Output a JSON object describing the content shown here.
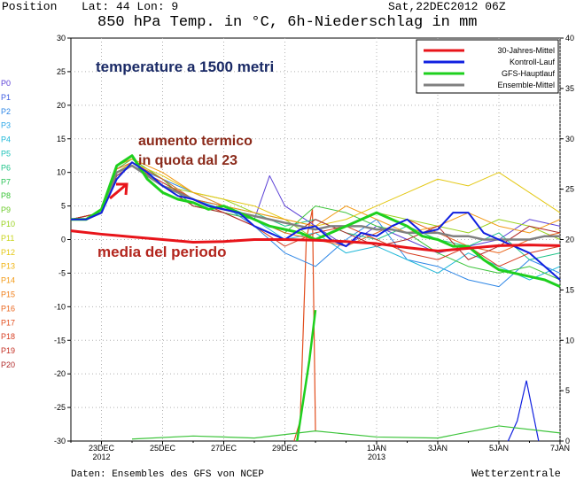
{
  "header": {
    "position_label": "Position",
    "coords_label": "Lat: 44 Lon: 9",
    "datetime": "Sat,22DEC2012 06Z",
    "title": "850 hPa Temp. in °C, 6h-Niederschlag in mm"
  },
  "footer": {
    "source": "Daten: Ensembles des GFS von NCEP",
    "brand": "Wetterzentrale"
  },
  "members": [
    {
      "label": "P0",
      "color": "#5a3fd6"
    },
    {
      "label": "P1",
      "color": "#3d5be0"
    },
    {
      "label": "P2",
      "color": "#2d86e6"
    },
    {
      "label": "P3",
      "color": "#2aa6e8"
    },
    {
      "label": "P4",
      "color": "#20b8d8"
    },
    {
      "label": "P5",
      "color": "#1fc2b8"
    },
    {
      "label": "P6",
      "color": "#22c48a"
    },
    {
      "label": "P7",
      "color": "#2ec35a"
    },
    {
      "label": "P8",
      "color": "#3cc43a"
    },
    {
      "label": "P9",
      "color": "#6ccb2a"
    },
    {
      "label": "P10",
      "color": "#9ad21f"
    },
    {
      "label": "P11",
      "color": "#c8d41a"
    },
    {
      "label": "P12",
      "color": "#e4c814"
    },
    {
      "label": "P13",
      "color": "#f0b414"
    },
    {
      "label": "P14",
      "color": "#f39a16"
    },
    {
      "label": "P15",
      "color": "#f07e18"
    },
    {
      "label": "P16",
      "color": "#ea651c"
    },
    {
      "label": "P17",
      "color": "#e24e1e"
    },
    {
      "label": "P18",
      "color": "#d63c20"
    },
    {
      "label": "P19",
      "color": "#c43024"
    },
    {
      "label": "P20",
      "color": "#b02828"
    }
  ],
  "annotations": {
    "upper_air": "temperature a 1500 metri",
    "warming_line1": "aumento termico",
    "warming_line2": "in quota dal 23",
    "period_mean": "media del periodo"
  },
  "colors": {
    "mean30": "#e8141a",
    "control": "#1020e0",
    "gfs": "#1ed01e",
    "ensemble": "#808080"
  },
  "chart_data": {
    "type": "line",
    "title": "850 hPa Temp. in °C, 6h-Niederschlag in mm",
    "x_range": [
      "2012-12-22",
      "2013-01-07"
    ],
    "x_ticks": [
      {
        "label": "23DEC",
        "sub": "2012",
        "day": 1
      },
      {
        "label": "25DEC",
        "sub": "",
        "day": 3
      },
      {
        "label": "27DEC",
        "sub": "",
        "day": 5
      },
      {
        "label": "29DEC",
        "sub": "",
        "day": 7
      },
      {
        "label": "1JAN",
        "sub": "2013",
        "day": 10
      },
      {
        "label": "3JAN",
        "sub": "",
        "day": 12
      },
      {
        "label": "5JAN",
        "sub": "",
        "day": 14
      },
      {
        "label": "7JAN",
        "sub": "",
        "day": 16
      }
    ],
    "y_left": {
      "min": -30,
      "max": 30,
      "ticks": [
        -30,
        -25,
        -20,
        -15,
        -10,
        -5,
        0,
        5,
        10,
        15,
        20,
        25,
        30
      ]
    },
    "y_right": {
      "min": 0,
      "max": 40,
      "ticks": [
        0,
        5,
        10,
        15,
        20,
        25,
        30,
        35,
        40
      ]
    },
    "grid": true,
    "legend_position": "top-right",
    "legend": [
      {
        "name": "30-Jahres-Mittel",
        "color": "#e8141a"
      },
      {
        "name": "Kontroll-Lauf",
        "color": "#1020e0"
      },
      {
        "name": "GFS-Hauptlauf",
        "color": "#1ed01e"
      },
      {
        "name": "Ensemble-Mittel",
        "color": "#808080"
      }
    ],
    "series": [
      {
        "name": "30-Jahres-Mittel",
        "color": "#e8141a",
        "width": 3,
        "x": [
          0,
          1,
          2,
          3,
          4,
          5,
          6,
          7,
          8,
          9,
          10,
          11,
          12,
          13,
          14,
          15,
          16
        ],
        "y": [
          1.3,
          0.8,
          0.4,
          0.0,
          -0.4,
          -0.3,
          0.0,
          0.0,
          -0.1,
          -0.3,
          -0.6,
          -1.2,
          -1.7,
          -1.3,
          -0.9,
          -0.8,
          -0.9
        ]
      },
      {
        "name": "Kontroll-Lauf",
        "color": "#1020e0",
        "width": 2,
        "x": [
          0,
          0.5,
          1,
          1.5,
          2,
          2.5,
          3,
          3.5,
          4,
          4.5,
          5,
          5.5,
          6,
          6.5,
          7,
          7.5,
          8,
          8.5,
          9,
          9.5,
          10,
          10.5,
          11,
          11.5,
          12,
          12.5,
          13,
          13.5,
          14,
          14.5,
          15,
          15.5,
          16
        ],
        "y": [
          3,
          3,
          4,
          9,
          11.5,
          10,
          8,
          6.5,
          6,
          5,
          4.5,
          4,
          2,
          1,
          0,
          1.5,
          2,
          0,
          -1,
          1,
          0.5,
          2,
          3,
          1,
          1.5,
          4,
          4,
          1,
          0,
          -1,
          -2,
          -4,
          -6
        ]
      },
      {
        "name": "GFS-Hauptlauf",
        "color": "#1ed01e",
        "width": 3,
        "x": [
          0,
          0.5,
          1,
          1.5,
          2,
          2.5,
          3,
          3.5,
          4,
          4.5,
          5,
          5.5,
          6,
          6.5,
          7,
          7.5,
          8,
          8.5,
          9,
          9.5,
          10,
          10.5,
          11,
          11.5,
          12,
          12.5,
          13,
          13.5,
          14,
          14.5,
          15,
          15.5,
          16
        ],
        "y": [
          3,
          3,
          4.5,
          11,
          12.5,
          9,
          7,
          6,
          5.5,
          4.5,
          5,
          4,
          3,
          2,
          1.5,
          1,
          0,
          1,
          2,
          3,
          4,
          3,
          2,
          0.5,
          0,
          -1,
          -1,
          -3,
          -4.5,
          -5,
          -5.5,
          -6,
          -7
        ]
      },
      {
        "name": "Ensemble-Mittel",
        "color": "#808080",
        "width": 2.5,
        "x": [
          0,
          0.5,
          1,
          1.5,
          2,
          2.5,
          3,
          3.5,
          4,
          4.5,
          5,
          5.5,
          6,
          6.5,
          7,
          7.5,
          8,
          8.5,
          9,
          9.5,
          10,
          10.5,
          11,
          11.5,
          12,
          12.5,
          13,
          13.5,
          14,
          14.5,
          15,
          15.5,
          16
        ],
        "y": [
          3,
          3,
          4,
          10,
          11,
          9.5,
          8,
          7,
          6,
          5,
          4.5,
          4,
          3.5,
          3,
          2.5,
          2,
          1.5,
          2,
          2,
          2,
          1.5,
          1.5,
          1,
          1,
          1,
          0.5,
          0.5,
          0,
          0,
          0,
          0,
          0.5,
          0.5
        ]
      },
      {
        "name": "P0",
        "color": "#5a3fd6",
        "width": 1,
        "x": [
          0,
          1,
          1.5,
          2,
          3,
          4,
          5,
          6,
          6.5,
          7,
          8,
          9,
          10,
          11,
          12,
          13,
          14,
          15,
          16
        ],
        "y": [
          3,
          4,
          10,
          11,
          8.5,
          6,
          4,
          3,
          9.5,
          5,
          2,
          -1,
          2,
          0,
          -2,
          -1,
          0,
          3,
          2
        ]
      },
      {
        "name": "P2",
        "color": "#2d86e6",
        "width": 1,
        "x": [
          0,
          1,
          1.5,
          2,
          3,
          4,
          5,
          6,
          7,
          8,
          9,
          10,
          11,
          12,
          13,
          14,
          15,
          16
        ],
        "y": [
          3,
          4,
          9.5,
          11,
          9,
          7,
          5,
          2,
          -2,
          -4,
          0,
          3,
          -3,
          -4,
          -6,
          -7,
          -3,
          -5
        ]
      },
      {
        "name": "P4",
        "color": "#20b8d8",
        "width": 1,
        "x": [
          0,
          1,
          1.5,
          2,
          3,
          4,
          5,
          6,
          7,
          8,
          9,
          10,
          11,
          12,
          13,
          14,
          15,
          16
        ],
        "y": [
          3,
          4,
          10,
          11.5,
          9,
          6,
          4.5,
          3,
          0,
          1,
          -2,
          -1,
          -3,
          -5,
          -2,
          -4,
          -6,
          -4
        ]
      },
      {
        "name": "P6",
        "color": "#22c48a",
        "width": 1,
        "x": [
          0,
          1,
          1.5,
          2,
          3,
          4,
          5,
          6,
          7,
          8,
          9,
          10,
          11,
          12,
          13,
          14,
          15,
          16
        ],
        "y": [
          3,
          4,
          11,
          12,
          8,
          6,
          5,
          4,
          2,
          3,
          1,
          0,
          2,
          0,
          -1,
          1,
          -3,
          -2
        ]
      },
      {
        "name": "P8",
        "color": "#3cc43a",
        "width": 1,
        "x": [
          0,
          1,
          1.5,
          2,
          3,
          4,
          5,
          6,
          7,
          8,
          9,
          10,
          11,
          12,
          13,
          14,
          15,
          16
        ],
        "y": [
          3,
          4,
          10.5,
          12,
          9,
          5,
          4,
          3,
          1,
          5,
          4,
          2,
          1,
          -2,
          -4,
          -5,
          -4,
          -6
        ]
      },
      {
        "name": "P10",
        "color": "#9ad21f",
        "width": 1,
        "x": [
          0,
          1,
          1.5,
          2,
          3,
          4,
          5,
          6,
          7,
          8,
          9,
          10,
          11,
          12,
          13,
          14,
          15,
          16
        ],
        "y": [
          3,
          4,
          10,
          11,
          8,
          7,
          6,
          4,
          3,
          0,
          2,
          4,
          3,
          2,
          1,
          3,
          2,
          0
        ]
      },
      {
        "name": "P12",
        "color": "#e4c814",
        "width": 1,
        "x": [
          0,
          1,
          1.5,
          2,
          3,
          4,
          5,
          6,
          7,
          8,
          9,
          10,
          11,
          12,
          13,
          14,
          15,
          16
        ],
        "y": [
          3,
          4,
          10,
          11.5,
          9.5,
          7,
          6,
          5,
          3,
          2,
          3,
          5,
          7,
          9,
          8,
          10,
          7,
          4
        ]
      },
      {
        "name": "P14",
        "color": "#f39a16",
        "width": 1,
        "x": [
          0,
          1,
          1.5,
          2,
          3,
          4,
          5,
          6,
          7,
          8,
          9,
          10,
          11,
          12,
          13,
          14,
          15,
          16
        ],
        "y": [
          3,
          4,
          11,
          12,
          10,
          7,
          5,
          4,
          3,
          2,
          5,
          3,
          1,
          2,
          4,
          2,
          1,
          3
        ]
      },
      {
        "name": "P16",
        "color": "#ea651c",
        "width": 1,
        "x": [
          0,
          1,
          1.5,
          2,
          3,
          4,
          5,
          6,
          7,
          8,
          9,
          10,
          11,
          12,
          13,
          14,
          15,
          16
        ],
        "y": [
          3,
          4,
          10.5,
          11.5,
          9,
          6,
          5,
          3,
          1,
          0,
          -1,
          1,
          3,
          1,
          -1,
          -2,
          0,
          1
        ]
      },
      {
        "name": "P18",
        "color": "#d63c20",
        "width": 1,
        "x": [
          0,
          1,
          1.5,
          2,
          3,
          4,
          5,
          6,
          7,
          8,
          9,
          10,
          11,
          12,
          13,
          14,
          15,
          16
        ],
        "y": [
          3,
          4,
          10,
          11,
          8.5,
          6,
          4,
          2,
          -1,
          1,
          2,
          0,
          -2,
          -3,
          -1,
          -4,
          -2,
          -1
        ]
      },
      {
        "name": "P20",
        "color": "#b02828",
        "width": 1,
        "x": [
          0,
          1,
          1.5,
          2,
          3,
          4,
          5,
          6,
          7,
          8,
          9,
          10,
          11,
          12,
          13,
          14,
          15,
          16
        ],
        "y": [
          3,
          4,
          9.5,
          11,
          8,
          5,
          4,
          2,
          0,
          3,
          1,
          -1,
          0,
          2,
          -3,
          -1,
          2,
          1
        ]
      }
    ],
    "precipitation": [
      {
        "name": "P17",
        "color": "#e24e1e",
        "axis": "right",
        "x": [
          7.3,
          7.5,
          7.7,
          7.9,
          8.0
        ],
        "y": [
          0,
          2,
          20,
          23,
          1
        ]
      },
      {
        "name": "GFS-Hauptlauf",
        "color": "#1ed01e",
        "axis": "right",
        "x": [
          7.4,
          7.6,
          7.8,
          8.0
        ],
        "y": [
          0,
          4,
          8,
          13
        ]
      },
      {
        "name": "Kontroll-Lauf",
        "color": "#1020e0",
        "axis": "right",
        "x": [
          14.3,
          14.6,
          14.9,
          15.1,
          15.3
        ],
        "y": [
          0,
          2,
          6,
          3,
          0
        ]
      },
      {
        "name": "Spread",
        "color": "#3cc43a",
        "axis": "right",
        "x": [
          2,
          4,
          6,
          8,
          10,
          12,
          14,
          16
        ],
        "y": [
          0.2,
          0.5,
          0.3,
          1,
          0.4,
          0.3,
          1.5,
          0.8
        ]
      }
    ]
  }
}
